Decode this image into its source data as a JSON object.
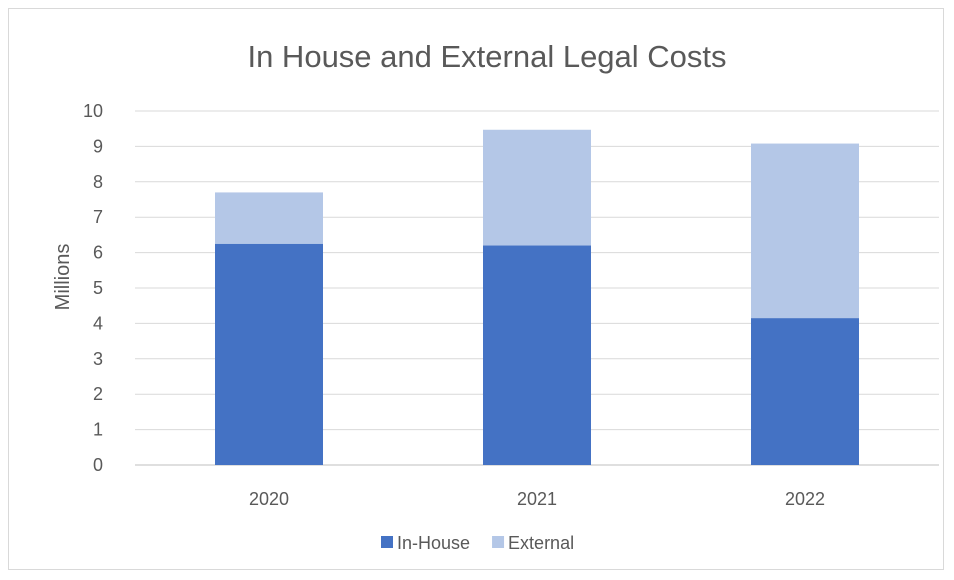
{
  "chart_data": {
    "type": "bar",
    "stacked": true,
    "title": "In House and External Legal Costs",
    "xlabel": "",
    "ylabel": "Millions",
    "categories": [
      "2020",
      "2021",
      "2022"
    ],
    "ylim": [
      0,
      10
    ],
    "yticks": [
      0,
      1,
      2,
      3,
      4,
      5,
      6,
      7,
      8,
      9,
      10
    ],
    "grid": true,
    "legend_position": "bottom",
    "series": [
      {
        "name": "In-House",
        "values": [
          6.25,
          6.2,
          4.15
        ],
        "color": "#4472C4"
      },
      {
        "name": "External",
        "values": [
          1.45,
          3.27,
          4.93
        ],
        "color": "#B4C7E7"
      }
    ]
  }
}
